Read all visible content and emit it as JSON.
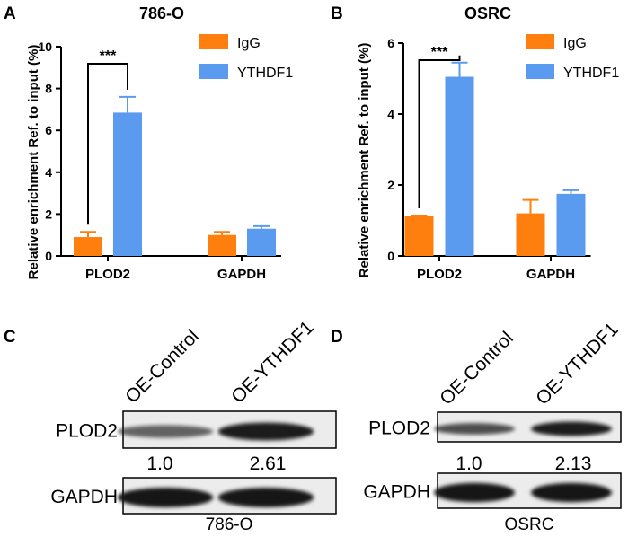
{
  "colors": {
    "igg": "#ff7f0e",
    "ythdf1": "#5b9bef",
    "axis": "#000000",
    "band": "#161616",
    "blot_bg": "#ececec"
  },
  "panels": {
    "A": {
      "letter": "A"
    },
    "B": {
      "letter": "B"
    },
    "C": {
      "letter": "C"
    },
    "D": {
      "letter": "D"
    }
  },
  "chart_data": [
    {
      "type": "bar",
      "panel": "A",
      "title": "786-O",
      "ylabel": "Relative enrichment Ref. to input (%)",
      "xlabel": "",
      "categories": [
        "PLOD2",
        "GAPDH"
      ],
      "ylim": [
        0,
        10
      ],
      "yticks": [
        "0",
        "2",
        "4",
        "6",
        "8",
        "10"
      ],
      "series": [
        {
          "name": "IgG",
          "values": [
            0.9,
            1.0
          ],
          "errors": [
            0.25,
            0.15
          ]
        },
        {
          "name": "YTHDF1",
          "values": [
            6.85,
            1.3
          ],
          "errors": [
            0.75,
            0.12
          ]
        }
      ],
      "annotations": [
        {
          "text": "***",
          "between": "PLOD2 IgG vs YTHDF1"
        }
      ],
      "legend": "top-right"
    },
    {
      "type": "bar",
      "panel": "B",
      "title": "OSRC",
      "ylabel": "Relative enrichment Ref. to input (%)",
      "xlabel": "",
      "categories": [
        "PLOD2",
        "GAPDH"
      ],
      "ylim": [
        0,
        6
      ],
      "yticks": [
        "0",
        "2",
        "4",
        "6"
      ],
      "series": [
        {
          "name": "IgG",
          "values": [
            1.12,
            1.2
          ],
          "errors": [
            0.02,
            0.38
          ]
        },
        {
          "name": "YTHDF1",
          "values": [
            5.05,
            1.75
          ],
          "errors": [
            0.4,
            0.1
          ]
        }
      ],
      "annotations": [
        {
          "text": "***",
          "between": "PLOD2 IgG vs YTHDF1"
        }
      ],
      "legend": "top-right"
    }
  ],
  "blots": {
    "C": {
      "lanes": [
        "OE-Control",
        "OE-YTHDF1"
      ],
      "rows": [
        "PLOD2",
        "GAPDH"
      ],
      "quant": [
        "1.0",
        "2.61"
      ],
      "plod2_intensity": [
        0.45,
        0.95
      ],
      "cell_line": "786-O"
    },
    "D": {
      "lanes": [
        "OE-Control",
        "OE-YTHDF1"
      ],
      "rows": [
        "PLOD2",
        "GAPDH"
      ],
      "quant": [
        "1.0",
        "2.13"
      ],
      "plod2_intensity": [
        0.6,
        0.95
      ],
      "cell_line": "OSRC"
    }
  }
}
